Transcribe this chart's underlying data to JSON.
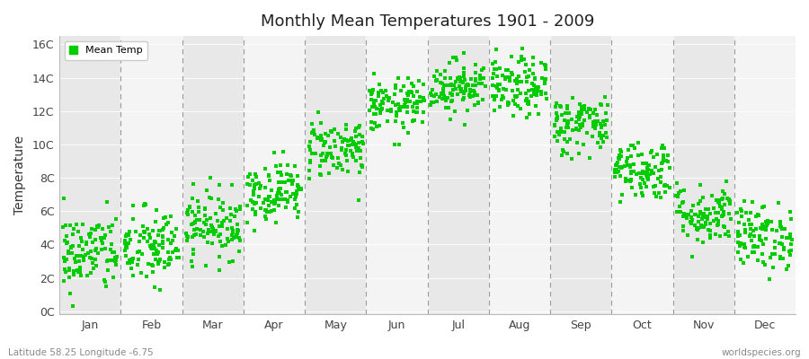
{
  "title": "Monthly Mean Temperatures 1901 - 2009",
  "ylabel": "Temperature",
  "bottom_left_label": "Latitude 58.25 Longitude -6.75",
  "bottom_right_label": "worldspecies.org",
  "legend_label": "Mean Temp",
  "dot_color": "#00CC00",
  "figure_bg": "#ffffff",
  "plot_bg": "#e8e8e8",
  "band_light": "#f4f4f4",
  "band_dark": "#e0e0e0",
  "ytick_labels": [
    "0C",
    "2C",
    "4C",
    "6C",
    "8C",
    "10C",
    "12C",
    "14C",
    "16C"
  ],
  "ytick_values": [
    0,
    2,
    4,
    6,
    8,
    10,
    12,
    14,
    16
  ],
  "months": [
    "Jan",
    "Feb",
    "Mar",
    "Apr",
    "May",
    "Jun",
    "Jul",
    "Aug",
    "Sep",
    "Oct",
    "Nov",
    "Dec"
  ],
  "month_mean_temps": [
    3.5,
    3.8,
    5.2,
    7.2,
    9.8,
    12.3,
    13.5,
    13.4,
    11.2,
    8.5,
    5.8,
    4.5
  ],
  "month_std_temps": [
    1.2,
    1.2,
    1.0,
    0.9,
    0.9,
    0.8,
    0.8,
    0.9,
    0.9,
    0.9,
    0.9,
    1.0
  ],
  "num_years": 109,
  "seed": 42,
  "ylim_min": -0.2,
  "ylim_max": 16.5
}
